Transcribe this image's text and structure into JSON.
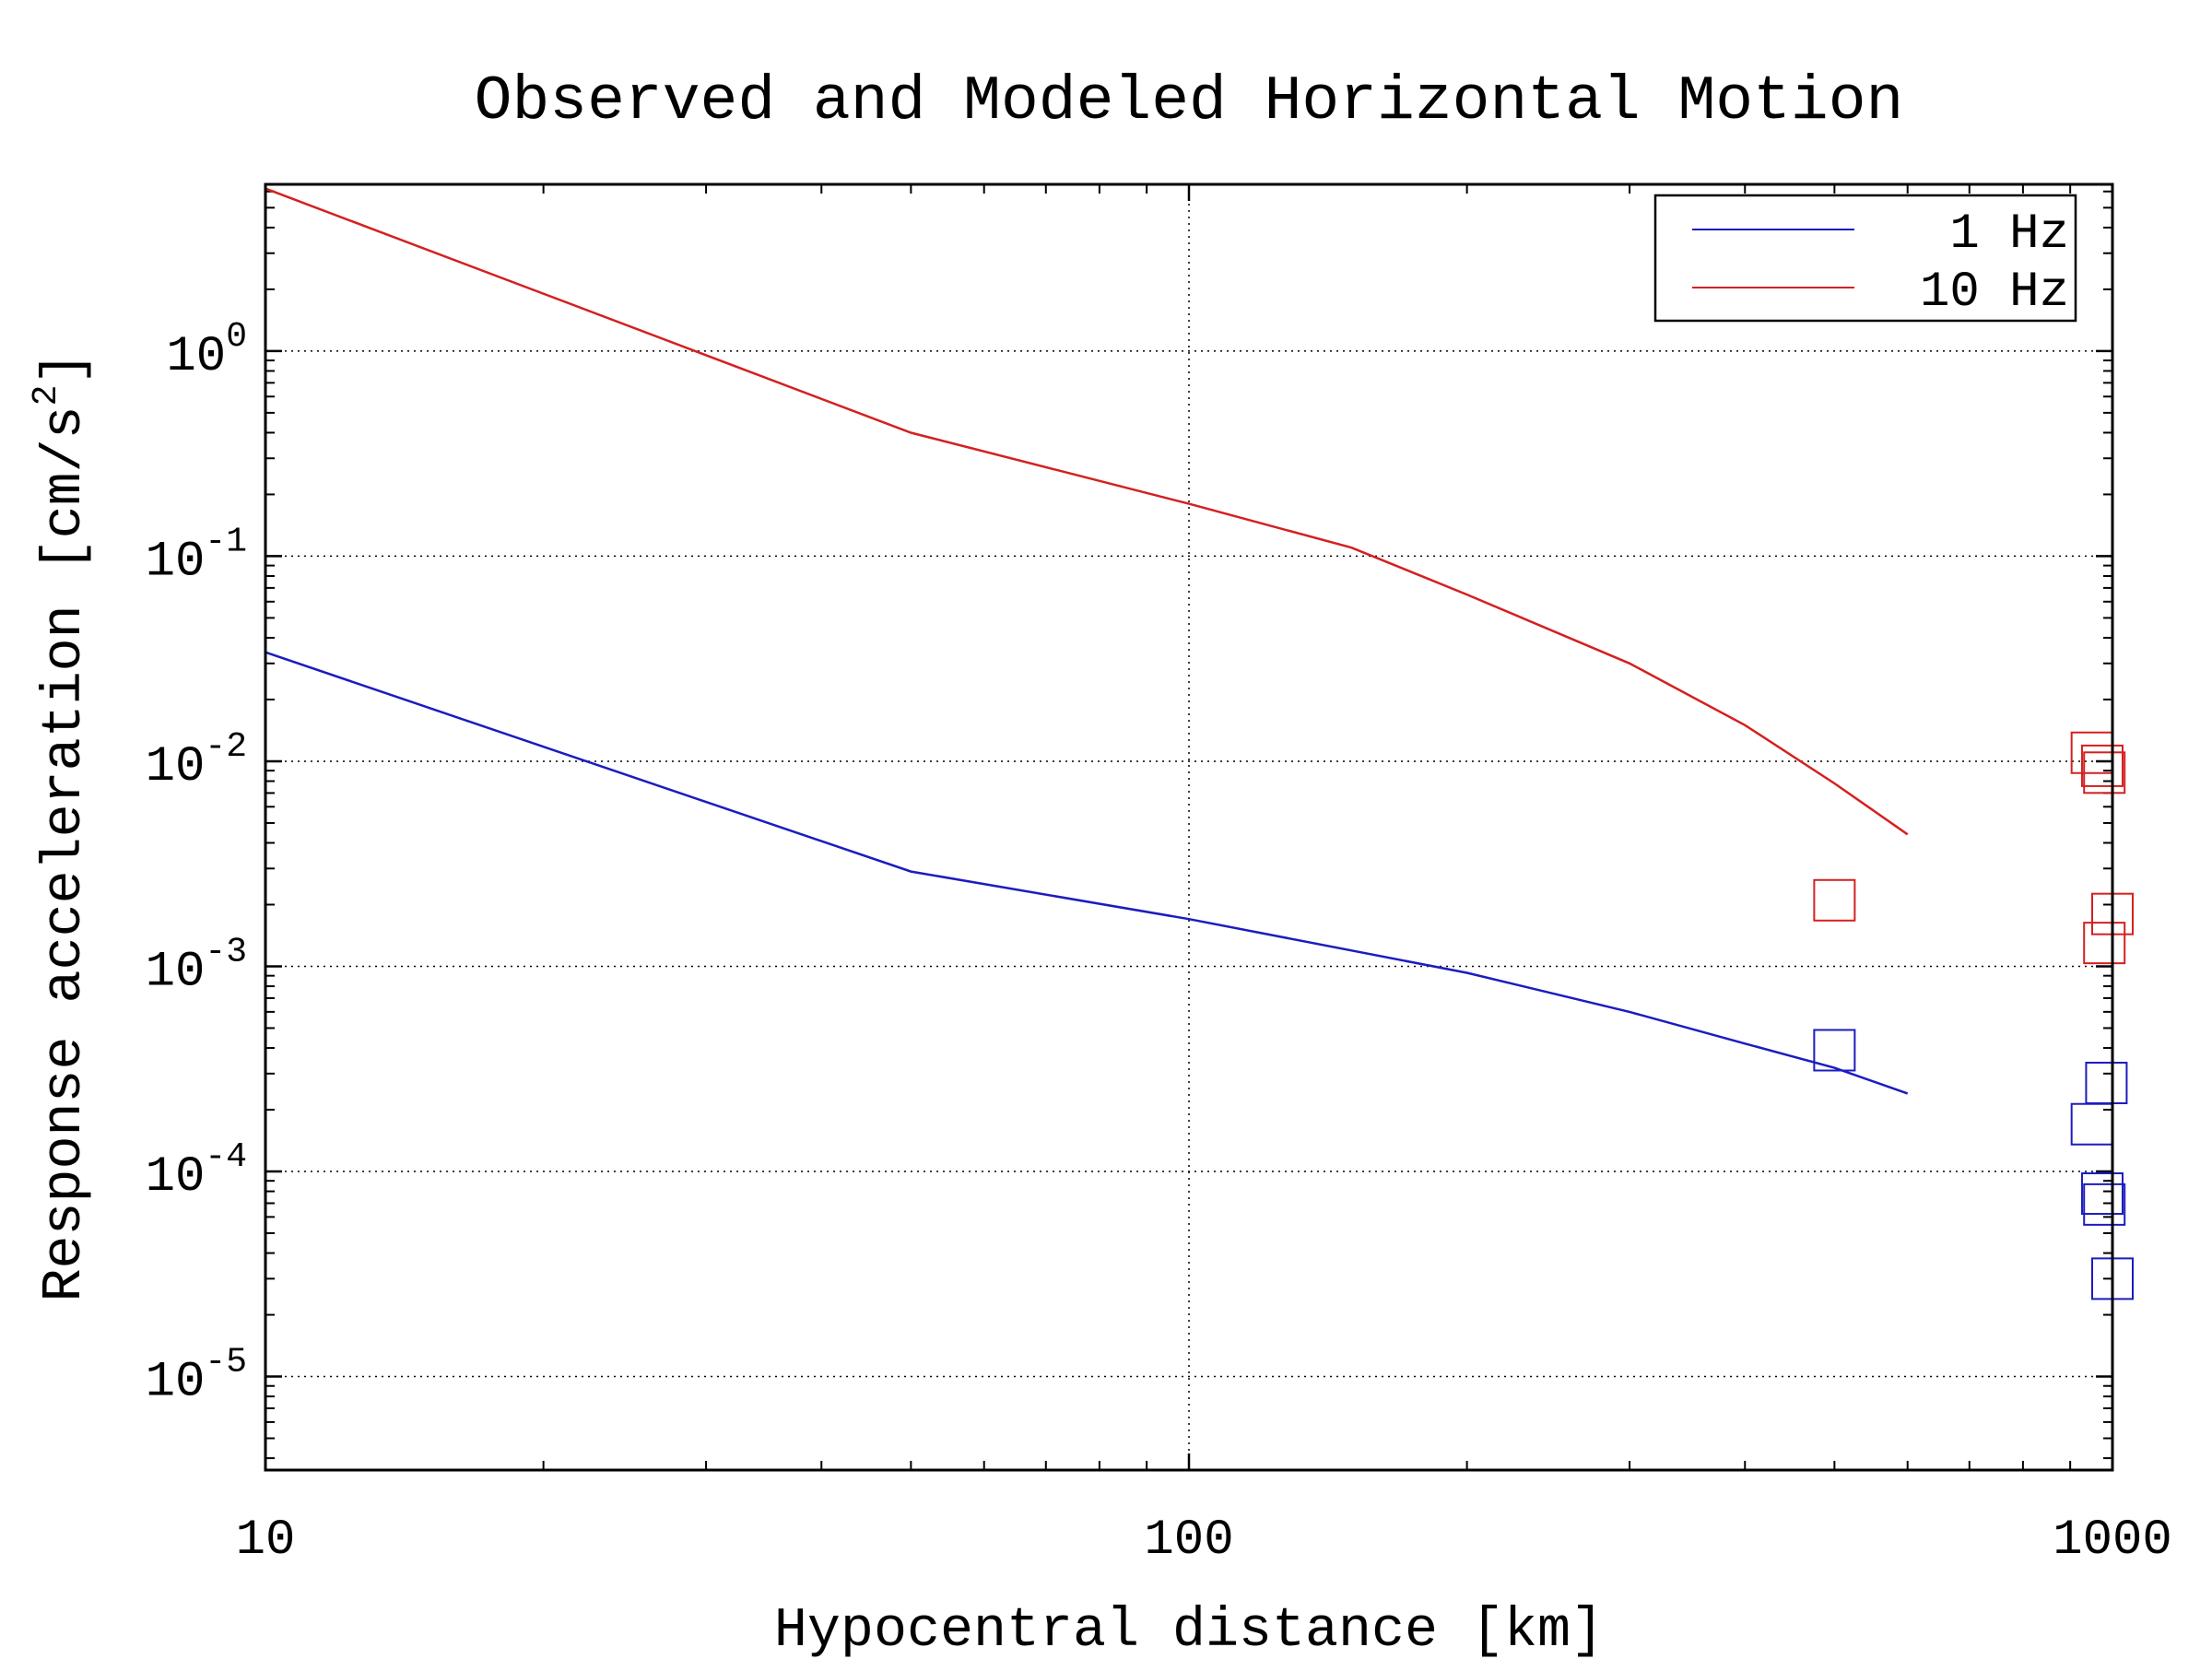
{
  "chart_data": {
    "type": "line",
    "title": "Observed and Modeled Horizontal Motion",
    "xlabel": "Hypocentral distance [km]",
    "ylabel": "Response acceleration [cm/s",
    "ylabel_sup": "2",
    "ylabel_end": "]",
    "x_scale": "log",
    "y_scale": "log",
    "xlim": [
      10,
      1000
    ],
    "ylim": [
      3.5e-06,
      6.5
    ],
    "x_ticks": [
      {
        "value": 10,
        "label": "10"
      },
      {
        "value": 100,
        "label": "100"
      },
      {
        "value": 1000,
        "label": "1000"
      }
    ],
    "y_ticks": [
      {
        "value": 1,
        "base": "10",
        "exp": "0"
      },
      {
        "value": 0.1,
        "base": "10",
        "exp": "-1"
      },
      {
        "value": 0.01,
        "base": "10",
        "exp": "-2"
      },
      {
        "value": 0.001,
        "base": "10",
        "exp": "-3"
      },
      {
        "value": 0.0001,
        "base": "10",
        "exp": "-4"
      },
      {
        "value": 1e-05,
        "base": "10",
        "exp": "-5"
      }
    ],
    "grid": true,
    "legend_position": "top-right",
    "series": [
      {
        "name": "1 Hz",
        "color": "#1c1cbf",
        "x": [
          10,
          50,
          100,
          200,
          300,
          400,
          500,
          600
        ],
        "y": [
          0.034,
          0.0029,
          0.0017,
          0.00093,
          0.0006,
          0.00042,
          0.00032,
          0.00024
        ]
      },
      {
        "name": "10 Hz",
        "color": "#d42020",
        "x": [
          10,
          50,
          100,
          150,
          200,
          300,
          400,
          500,
          600
        ],
        "y": [
          6.2,
          0.4,
          0.18,
          0.11,
          0.065,
          0.03,
          0.015,
          0.0078,
          0.0044
        ]
      }
    ],
    "observed": [
      {
        "series": "1 Hz",
        "color": "#1c1cbf",
        "points": [
          [
            500,
            0.00039
          ],
          [
            950,
            0.00017
          ],
          [
            985,
            0.00027
          ],
          [
            975,
            7.8e-05
          ],
          [
            980,
            6.9e-05
          ],
          [
            1000,
            3e-05
          ]
        ]
      },
      {
        "series": "10 Hz",
        "color": "#d42020",
        "points": [
          [
            500,
            0.0021
          ],
          [
            950,
            0.011
          ],
          [
            975,
            0.0095
          ],
          [
            980,
            0.0088
          ],
          [
            1000,
            0.0018
          ],
          [
            980,
            0.0013
          ]
        ]
      }
    ]
  }
}
